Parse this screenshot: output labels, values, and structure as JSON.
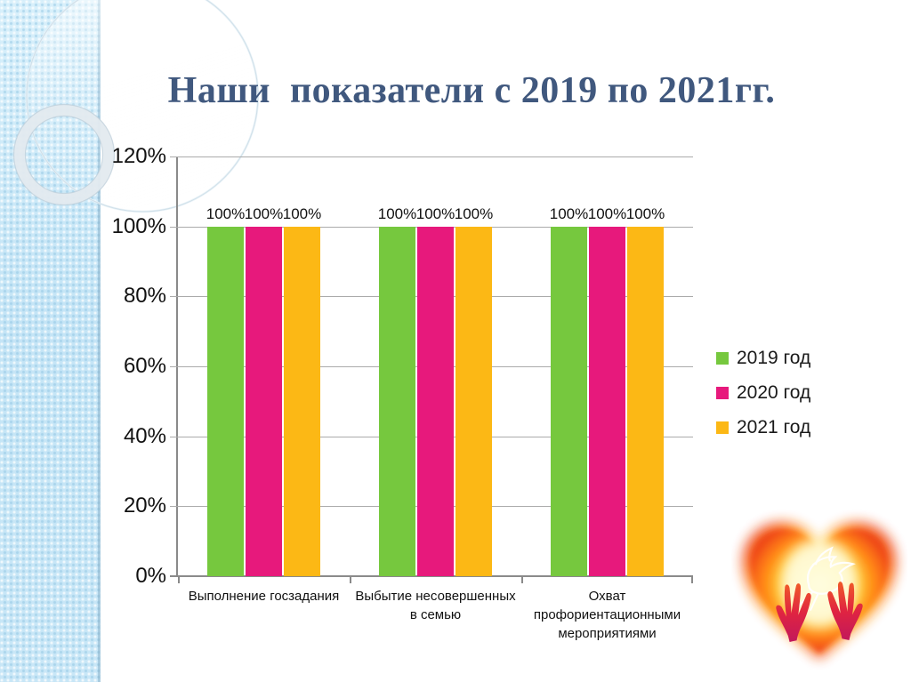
{
  "slide": {
    "title": "Наши  показатели с 2019 по 2021гг."
  },
  "chart_data": {
    "type": "bar",
    "title": "",
    "categories": [
      "Выполнение госзадания",
      "Выбытие несовершенных в семью",
      "Охват профориентационными мероприятиями"
    ],
    "series": [
      {
        "name": "2019 год",
        "color": "#76C83E",
        "values": [
          100,
          100,
          100
        ]
      },
      {
        "name": "2020 год",
        "color": "#E7197C",
        "values": [
          100,
          100,
          100
        ]
      },
      {
        "name": "2021 год",
        "color": "#FCB815",
        "values": [
          100,
          100,
          100
        ]
      }
    ],
    "data_label_suffix": "%",
    "y_ticks": [
      {
        "value": 120,
        "label": "120%"
      },
      {
        "value": 100,
        "label": "100%"
      },
      {
        "value": 80,
        "label": "80%"
      },
      {
        "value": 60,
        "label": "60%"
      },
      {
        "value": 40,
        "label": "40%"
      },
      {
        "value": 20,
        "label": "20%"
      },
      {
        "value": 0,
        "label": "0%"
      }
    ],
    "ylim": [
      0,
      120
    ],
    "grid": true,
    "legend_position": "right"
  },
  "decor": {
    "sidebar": "light-blue-textured-strip-with-glass-circles",
    "heart_emblem": "flaming-heart-with-white-dove-and-red-hands"
  },
  "colors": {
    "title_text": "#40587E",
    "grid_line": "#ABABAB",
    "axis_line": "#8A8A8A",
    "sidebar_blue": "#C9E7F7"
  }
}
